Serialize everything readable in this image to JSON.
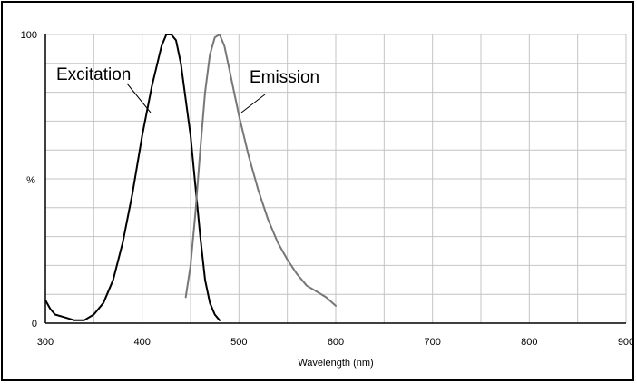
{
  "chart_data": {
    "type": "line",
    "title": "",
    "xlabel": "Wavelength  (nm)",
    "ylabel": "%",
    "xlim": [
      300,
      900
    ],
    "ylim": [
      0,
      100
    ],
    "x_ticks": [
      "300",
      "400",
      "500",
      "600",
      "700",
      "800",
      "900"
    ],
    "y_ticks": [
      "0",
      "100"
    ],
    "grid": true,
    "legend": "none",
    "series": [
      {
        "name": "Excitation",
        "color": "#000000",
        "x": [
          300,
          305,
          310,
          320,
          330,
          340,
          350,
          360,
          370,
          380,
          390,
          400,
          410,
          420,
          425,
          430,
          435,
          440,
          450,
          460,
          465,
          470,
          475,
          480
        ],
        "y": [
          8,
          5,
          3,
          2,
          1,
          1,
          3,
          7,
          15,
          28,
          45,
          65,
          82,
          96,
          100,
          100,
          98,
          90,
          65,
          30,
          15,
          7,
          3,
          1
        ]
      },
      {
        "name": "Emission",
        "color": "#777777",
        "x": [
          445,
          450,
          455,
          460,
          465,
          470,
          475,
          480,
          485,
          490,
          500,
          510,
          520,
          530,
          540,
          550,
          560,
          570,
          580,
          590,
          600
        ],
        "y": [
          9,
          20,
          38,
          60,
          80,
          93,
          99,
          100,
          96,
          88,
          72,
          58,
          46,
          36,
          28,
          22,
          17,
          13,
          11,
          9,
          6
        ]
      }
    ]
  },
  "annotations": {
    "excitation": "Excitation",
    "emission": "Emission"
  }
}
